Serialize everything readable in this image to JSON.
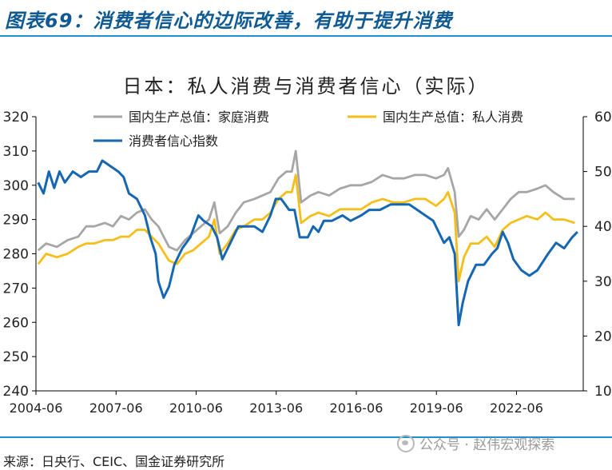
{
  "header": {
    "title": "图表69：消费者信心的边际改善，有助于提升消费"
  },
  "source": "来源：日央行、CEIC、国金证券研究所",
  "watermark": "公众号 · 赵伟宏观探索",
  "colors": {
    "household": "#a6a6a6",
    "private": "#f5be19",
    "confidence": "#1667b3"
  },
  "chart_data": {
    "type": "line",
    "title": "日本：私人消费与消费者信心（实际）",
    "x_ticks": [
      "2004-06",
      "2007-06",
      "2010-06",
      "2013-06",
      "2016-06",
      "2019-06",
      "2022-06"
    ],
    "x_range": [
      "2004-06",
      "2024-12"
    ],
    "y_left": {
      "range": [
        240,
        320
      ],
      "ticks": [
        240,
        250,
        260,
        270,
        280,
        290,
        300,
        310,
        320
      ]
    },
    "y_right": {
      "range": [
        10,
        60
      ],
      "ticks": [
        10,
        20,
        30,
        40,
        50,
        60
      ]
    },
    "legend": [
      "国内生产总值：家庭消费",
      "国内生产总值：私人消费",
      "消费者信心指数"
    ],
    "series": [
      {
        "name": "国内生产总值：家庭消费",
        "axis": "left",
        "color": "#a6a6a6",
        "points": [
          [
            2004.5,
            281
          ],
          [
            2004.8,
            283
          ],
          [
            2005.2,
            282
          ],
          [
            2005.6,
            284
          ],
          [
            2006.0,
            285
          ],
          [
            2006.3,
            288
          ],
          [
            2006.6,
            288
          ],
          [
            2007.0,
            289
          ],
          [
            2007.3,
            288
          ],
          [
            2007.6,
            291
          ],
          [
            2007.9,
            290
          ],
          [
            2008.2,
            292
          ],
          [
            2008.5,
            293
          ],
          [
            2008.75,
            290
          ],
          [
            2009.0,
            288
          ],
          [
            2009.4,
            282
          ],
          [
            2009.7,
            281
          ],
          [
            2010.0,
            284
          ],
          [
            2010.3,
            286
          ],
          [
            2010.6,
            288
          ],
          [
            2010.9,
            290
          ],
          [
            2011.1,
            295
          ],
          [
            2011.3,
            286
          ],
          [
            2011.6,
            288
          ],
          [
            2011.9,
            292
          ],
          [
            2012.2,
            295
          ],
          [
            2012.6,
            296
          ],
          [
            2012.9,
            297
          ],
          [
            2013.2,
            298
          ],
          [
            2013.5,
            302
          ],
          [
            2013.8,
            304
          ],
          [
            2014.0,
            304
          ],
          [
            2014.15,
            310
          ],
          [
            2014.35,
            295
          ],
          [
            2014.7,
            297
          ],
          [
            2015.0,
            298
          ],
          [
            2015.4,
            297
          ],
          [
            2015.8,
            299
          ],
          [
            2016.2,
            300
          ],
          [
            2016.6,
            300
          ],
          [
            2017.0,
            301
          ],
          [
            2017.4,
            303
          ],
          [
            2017.8,
            302
          ],
          [
            2018.2,
            302
          ],
          [
            2018.6,
            303
          ],
          [
            2019.0,
            303
          ],
          [
            2019.4,
            302
          ],
          [
            2019.7,
            303
          ],
          [
            2019.85,
            305
          ],
          [
            2020.1,
            298
          ],
          [
            2020.25,
            285
          ],
          [
            2020.45,
            287
          ],
          [
            2020.7,
            291
          ],
          [
            2021.0,
            290
          ],
          [
            2021.3,
            293
          ],
          [
            2021.6,
            290
          ],
          [
            2021.9,
            293
          ],
          [
            2022.2,
            296
          ],
          [
            2022.5,
            298
          ],
          [
            2022.8,
            298
          ],
          [
            2023.2,
            299
          ],
          [
            2023.5,
            300
          ],
          [
            2023.8,
            298
          ],
          [
            2024.2,
            296
          ],
          [
            2024.6,
            296
          ]
        ]
      },
      {
        "name": "国内生产总值：私人消费",
        "axis": "left",
        "color": "#f5be19",
        "points": [
          [
            2004.5,
            277
          ],
          [
            2004.8,
            280
          ],
          [
            2005.2,
            279
          ],
          [
            2005.6,
            280
          ],
          [
            2006.0,
            282
          ],
          [
            2006.3,
            283
          ],
          [
            2006.6,
            283
          ],
          [
            2007.0,
            284
          ],
          [
            2007.3,
            284
          ],
          [
            2007.6,
            285
          ],
          [
            2007.9,
            285
          ],
          [
            2008.2,
            287
          ],
          [
            2008.5,
            287
          ],
          [
            2008.75,
            285
          ],
          [
            2009.0,
            283
          ],
          [
            2009.4,
            278
          ],
          [
            2009.7,
            277
          ],
          [
            2010.0,
            280
          ],
          [
            2010.3,
            281
          ],
          [
            2010.6,
            283
          ],
          [
            2010.9,
            285
          ],
          [
            2011.1,
            290
          ],
          [
            2011.3,
            280
          ],
          [
            2011.6,
            283
          ],
          [
            2011.9,
            287
          ],
          [
            2012.2,
            288
          ],
          [
            2012.6,
            290
          ],
          [
            2012.9,
            290
          ],
          [
            2013.2,
            292
          ],
          [
            2013.5,
            296
          ],
          [
            2013.8,
            298
          ],
          [
            2014.0,
            298
          ],
          [
            2014.15,
            303
          ],
          [
            2014.35,
            289
          ],
          [
            2014.7,
            291
          ],
          [
            2015.0,
            292
          ],
          [
            2015.4,
            291
          ],
          [
            2015.8,
            293
          ],
          [
            2016.2,
            293
          ],
          [
            2016.6,
            293
          ],
          [
            2017.0,
            295
          ],
          [
            2017.4,
            296
          ],
          [
            2017.8,
            295
          ],
          [
            2018.2,
            295
          ],
          [
            2018.6,
            296
          ],
          [
            2019.0,
            296
          ],
          [
            2019.4,
            294
          ],
          [
            2019.7,
            296
          ],
          [
            2019.85,
            298
          ],
          [
            2020.1,
            292
          ],
          [
            2020.25,
            272
          ],
          [
            2020.45,
            279
          ],
          [
            2020.7,
            283
          ],
          [
            2021.0,
            283
          ],
          [
            2021.3,
            285
          ],
          [
            2021.6,
            282
          ],
          [
            2021.9,
            287
          ],
          [
            2022.2,
            289
          ],
          [
            2022.5,
            290
          ],
          [
            2022.8,
            291
          ],
          [
            2023.2,
            290
          ],
          [
            2023.5,
            292
          ],
          [
            2023.8,
            290
          ],
          [
            2024.2,
            290
          ],
          [
            2024.6,
            289
          ]
        ]
      },
      {
        "name": "消费者信心指数",
        "axis": "right",
        "color": "#1667b3",
        "points": [
          [
            2004.5,
            48
          ],
          [
            2004.7,
            46
          ],
          [
            2004.9,
            50
          ],
          [
            2005.1,
            47
          ],
          [
            2005.3,
            50
          ],
          [
            2005.5,
            48
          ],
          [
            2005.8,
            50
          ],
          [
            2006.1,
            49
          ],
          [
            2006.4,
            50
          ],
          [
            2006.7,
            50
          ],
          [
            2006.9,
            52
          ],
          [
            2007.2,
            51
          ],
          [
            2007.5,
            50
          ],
          [
            2007.7,
            49
          ],
          [
            2007.9,
            46
          ],
          [
            2008.2,
            45
          ],
          [
            2008.5,
            42
          ],
          [
            2008.7,
            38
          ],
          [
            2008.9,
            35
          ],
          [
            2009.0,
            30
          ],
          [
            2009.2,
            27
          ],
          [
            2009.4,
            29
          ],
          [
            2009.6,
            33
          ],
          [
            2009.9,
            36
          ],
          [
            2010.2,
            38
          ],
          [
            2010.5,
            42
          ],
          [
            2010.7,
            41
          ],
          [
            2011.0,
            40
          ],
          [
            2011.2,
            38
          ],
          [
            2011.4,
            34
          ],
          [
            2011.7,
            37
          ],
          [
            2012.0,
            40
          ],
          [
            2012.3,
            40
          ],
          [
            2012.6,
            40
          ],
          [
            2012.9,
            39
          ],
          [
            2013.2,
            42
          ],
          [
            2013.4,
            45
          ],
          [
            2013.6,
            45
          ],
          [
            2013.9,
            43
          ],
          [
            2014.1,
            43
          ],
          [
            2014.3,
            38
          ],
          [
            2014.6,
            38
          ],
          [
            2014.8,
            40
          ],
          [
            2015.0,
            39
          ],
          [
            2015.2,
            41
          ],
          [
            2015.5,
            41
          ],
          [
            2015.9,
            42
          ],
          [
            2016.2,
            41
          ],
          [
            2016.6,
            42
          ],
          [
            2016.9,
            43
          ],
          [
            2017.3,
            43
          ],
          [
            2017.7,
            44
          ],
          [
            2018.0,
            44
          ],
          [
            2018.4,
            44
          ],
          [
            2018.7,
            43
          ],
          [
            2019.0,
            42
          ],
          [
            2019.3,
            41
          ],
          [
            2019.5,
            39
          ],
          [
            2019.7,
            37
          ],
          [
            2019.9,
            38
          ],
          [
            2020.1,
            35
          ],
          [
            2020.25,
            22
          ],
          [
            2020.4,
            26
          ],
          [
            2020.6,
            30
          ],
          [
            2020.9,
            33
          ],
          [
            2021.2,
            33
          ],
          [
            2021.5,
            35
          ],
          [
            2021.7,
            36
          ],
          [
            2021.9,
            39
          ],
          [
            2022.1,
            37
          ],
          [
            2022.3,
            34
          ],
          [
            2022.6,
            32
          ],
          [
            2022.9,
            31
          ],
          [
            2023.2,
            32
          ],
          [
            2023.6,
            35
          ],
          [
            2023.9,
            37
          ],
          [
            2024.2,
            36
          ],
          [
            2024.5,
            38
          ],
          [
            2024.7,
            39
          ]
        ]
      }
    ]
  }
}
